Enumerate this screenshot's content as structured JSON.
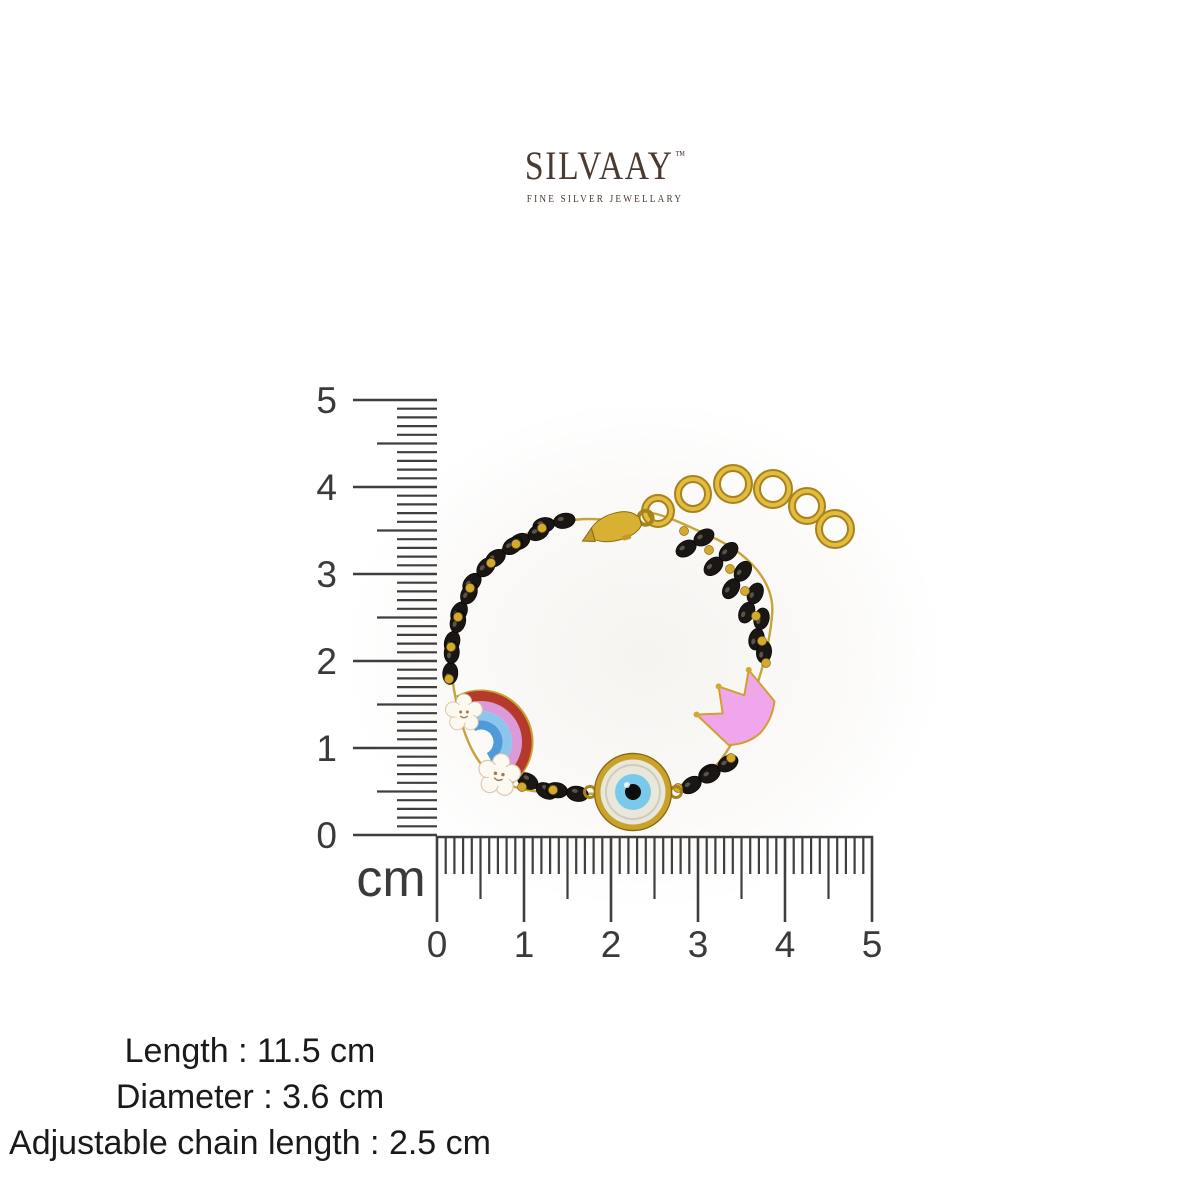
{
  "brand": {
    "name": "SILVAAY",
    "trademark": "™",
    "tagline": "FINE SILVER JEWELLARY",
    "text_color": "#4b3a31"
  },
  "ruler": {
    "unit_label": "cm",
    "vertical_tick_labels": [
      "0",
      "1",
      "2",
      "3",
      "4",
      "5"
    ],
    "horizontal_tick_labels": [
      "0",
      "1",
      "2",
      "3",
      "4",
      "5"
    ],
    "line_color": "#3e3e3e",
    "label_color": "#3a3a3a"
  },
  "product": {
    "description": "gold kids bracelet with black beads and adjustable chain",
    "charms": [
      "rainbow-with-star-clouds",
      "evil-eye",
      "pink-crown"
    ],
    "colors": {
      "gold": "#c9a22c",
      "gold_dark": "#8a6914",
      "gold_light": "#e2bc3f",
      "bead_black": "#191613",
      "crown_pink": "#efa6ea",
      "rainbow_red": "#b53a2b",
      "rainbow_pink": "#dc9ad8",
      "rainbow_light_blue": "#8cc6ee",
      "rainbow_blue": "#4f9ad9",
      "evil_eye_iris": "#79c9ec",
      "evil_eye_pearl": "#e9e7da"
    }
  },
  "specs": {
    "lines": [
      "Length : 11.5 cm",
      "Diameter : 3.6 cm",
      "Adjustable chain length : 2.5 cm"
    ]
  }
}
